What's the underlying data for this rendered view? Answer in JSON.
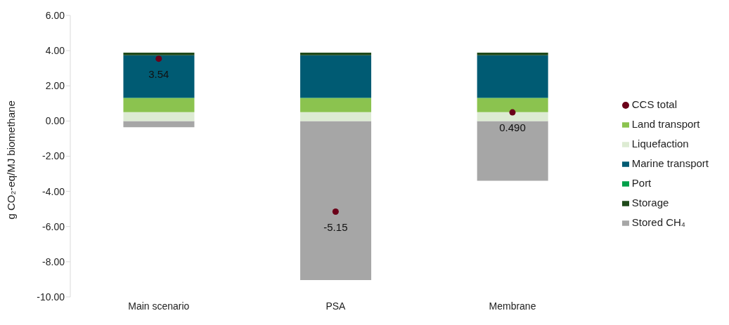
{
  "chart_data": {
    "type": "bar",
    "stacked": true,
    "ylabel": "g CO₂-eq/MJ biomethane",
    "categories": [
      "Main scenario",
      "PSA",
      "Membrane"
    ],
    "series": [
      {
        "name": "Stored CH₄",
        "color": "#a6a6a6",
        "values": [
          -0.35,
          -9.04,
          -3.4
        ]
      },
      {
        "name": "Liquefaction",
        "color": "#ddebd3",
        "values": [
          0.5,
          0.5,
          0.5
        ]
      },
      {
        "name": "Land transport",
        "color": "#8bc34f",
        "values": [
          0.8,
          0.8,
          0.8
        ]
      },
      {
        "name": "Port",
        "color": "#00a04a",
        "values": [
          0.02,
          0.02,
          0.02
        ]
      },
      {
        "name": "Marine transport",
        "color": "#005b73",
        "values": [
          2.42,
          2.42,
          2.42
        ]
      },
      {
        "name": "Storage",
        "color": "#1f4a1a",
        "values": [
          0.15,
          0.15,
          0.15
        ]
      },
      {
        "name": "CCS total",
        "type": "scatter",
        "color": "#6b0019",
        "values": [
          3.54,
          -5.15,
          0.49
        ],
        "value_labels": [
          "3.54",
          "-5.15",
          "0.490"
        ]
      }
    ],
    "ylim": [
      -10,
      6
    ],
    "yticks": [
      {
        "value": -10,
        "label": "-10.00"
      },
      {
        "value": -8,
        "label": "-8.00"
      },
      {
        "value": -6,
        "label": "-6.00"
      },
      {
        "value": -4,
        "label": "-4.00"
      },
      {
        "value": -2,
        "label": "-2.00"
      },
      {
        "value": 0,
        "label": "0.00"
      },
      {
        "value": 2,
        "label": "2.00"
      },
      {
        "value": 4,
        "label": "4.00"
      },
      {
        "value": 6,
        "label": "6.00"
      }
    ],
    "grid": false,
    "legend": "right",
    "marker": "circle"
  }
}
